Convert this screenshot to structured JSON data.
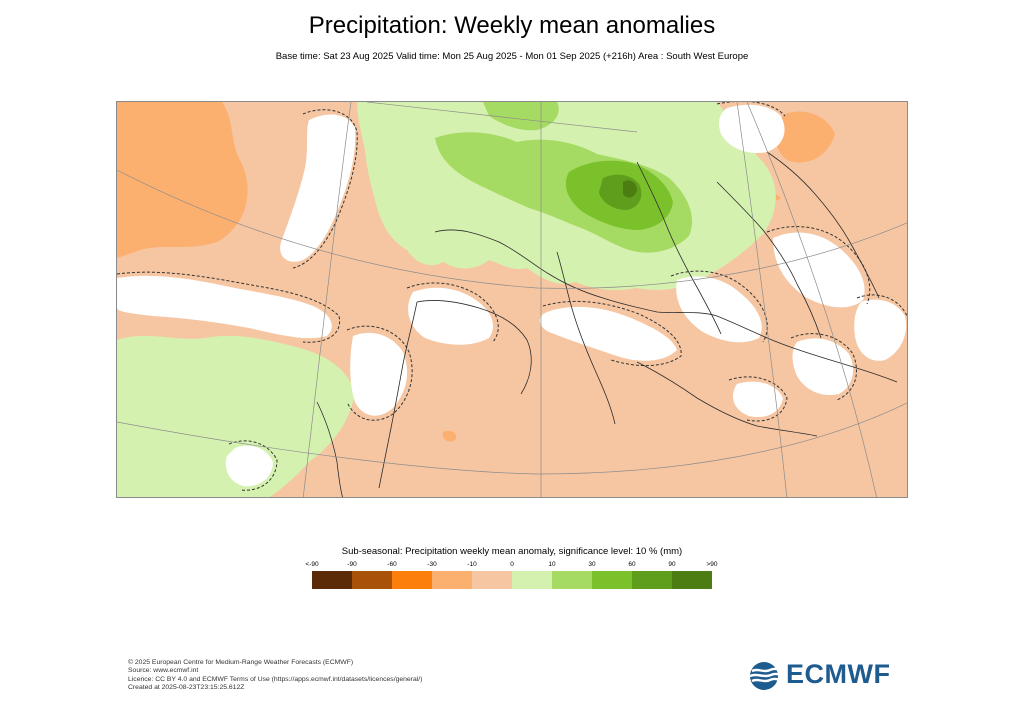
{
  "header": {
    "title": "Precipitation: Weekly mean anomalies",
    "subtitle": "Base time: Sat 23 Aug 2025 Valid time: Mon 25 Aug 2025 - Mon 01 Sep 2025 (+216h) Area : South West Europe"
  },
  "map": {
    "region": "South West Europe",
    "colors": {
      "ocean_dry": "#f6c6a2",
      "dry_moderate": "#fcb070",
      "wet_light": "#d5f1b0",
      "wet_moderate": "#a6db63",
      "wet_strong": "#7bc12b",
      "wet_very_strong": "#5e9e1c",
      "wet_extreme": "#4c7d12",
      "insignificant": "#ffffff",
      "borders": "#2b2b2b",
      "grid": "#8c8c8c"
    }
  },
  "legend": {
    "title": "Sub-seasonal: Precipitation weekly mean anomaly, significance level: 10 % (mm)",
    "ticks": [
      "<-90",
      "-90",
      "-60",
      "-30",
      "-10",
      "0",
      "10",
      "30",
      "60",
      "90",
      ">90"
    ],
    "colors": [
      "#5b2a06",
      "#a85209",
      "#fc7f0c",
      "#fcb070",
      "#f6c6a2",
      "#d5f1b0",
      "#a6db63",
      "#7bc12b",
      "#5e9e1c",
      "#4c7d12"
    ]
  },
  "footer": {
    "line1": "© 2025 European Centre for Medium-Range Weather Forecasts (ECMWF)",
    "line2": "Source: www.ecmwf.int",
    "line3": "Licence: CC BY 4.0 and ECMWF Terms of Use (https://apps.ecmwf.int/datasets/licences/general/)",
    "line4": "Created at 2025-08-23T23:15:25.612Z"
  },
  "logo": {
    "text": "ECMWF"
  }
}
